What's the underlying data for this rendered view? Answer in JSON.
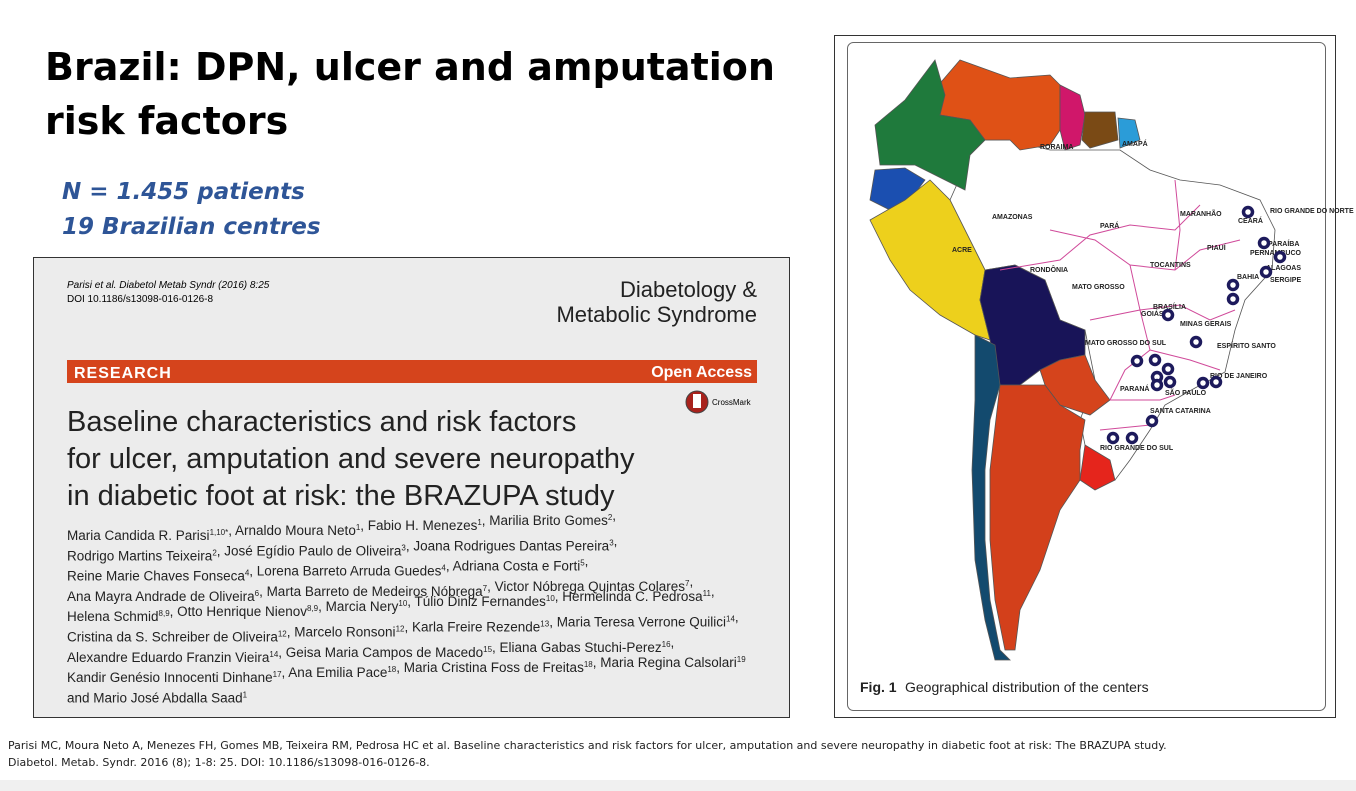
{
  "slide": {
    "title_lines": [
      "Brazil: DPN, ulcer and amputation",
      "risk factors"
    ],
    "subtitle_lines": [
      "N = 1.455 patients",
      "19 Brazilian centres"
    ]
  },
  "paper": {
    "citation_lines": [
      "Parisi et al. Diabetol Metab Syndr (2016) 8:25",
      "DOI 10.1186/s13098-016-0126-8"
    ],
    "journal_lines": [
      "Diabetology &",
      "Metabolic Syndrome"
    ],
    "section": "RESEARCH",
    "access": "Open Access",
    "crossmark": "CrossMark",
    "title_lines": [
      "Baseline characteristics and risk factors",
      "for ulcer, amputation and severe neuropathy",
      "in diabetic foot at risk: the BRAZUPA study"
    ],
    "author_lines": [
      [
        {
          "text": "Maria Candida R. Parisi",
          "sup": "1,10*"
        },
        {
          "text": ", Arnaldo Moura Neto",
          "sup": "1"
        },
        {
          "text": ", Fabio H. Menezes",
          "sup": "1"
        },
        {
          "text": ", Marilia Brito Gomes",
          "sup": "2"
        },
        {
          "text": ","
        }
      ],
      [
        {
          "text": "Rodrigo Martins Teixeira",
          "sup": "2"
        },
        {
          "text": ", José Egídio Paulo de Oliveira",
          "sup": "3"
        },
        {
          "text": ", Joana Rodrigues Dantas Pereira",
          "sup": "3"
        },
        {
          "text": ","
        }
      ],
      [
        {
          "text": "Reine Marie Chaves Fonseca",
          "sup": "4"
        },
        {
          "text": ", Lorena Barreto Arruda Guedes",
          "sup": "4"
        },
        {
          "text": ", Adriana Costa e Forti",
          "sup": "5"
        },
        {
          "text": ","
        }
      ],
      [
        {
          "text": "Ana Mayra Andrade de Oliveira",
          "sup": "6"
        },
        {
          "text": ", Marta Barreto de Medeiros Nóbrega",
          "sup": "7"
        },
        {
          "text": ", Victor Nóbrega Quintas Colares",
          "sup": "7"
        },
        {
          "text": ","
        }
      ],
      [
        {
          "text": "Helena Schmid",
          "sup": "8,9"
        },
        {
          "text": ", Otto Henrique Nienov",
          "sup": "8,9"
        },
        {
          "text": ", Marcia Nery",
          "sup": "10"
        },
        {
          "text": ", Túlio Diniz Fernandes",
          "sup": "10"
        },
        {
          "text": ", Hermelinda C. Pedrosa",
          "sup": "11"
        },
        {
          "text": ","
        }
      ],
      [
        {
          "text": "Cristina da S. Schreiber de Oliveira",
          "sup": "12"
        },
        {
          "text": ", Marcelo Ronsoni",
          "sup": "12"
        },
        {
          "text": ", Karla Freire Rezende",
          "sup": "13"
        },
        {
          "text": ", Maria Teresa Verrone Quilici",
          "sup": "14"
        },
        {
          "text": ","
        }
      ],
      [
        {
          "text": "Alexandre Eduardo Franzin Vieira",
          "sup": "14"
        },
        {
          "text": ", Geisa Maria Campos de Macedo",
          "sup": "15"
        },
        {
          "text": ", Eliana Gabas Stuchi-Perez",
          "sup": "16"
        },
        {
          "text": ","
        }
      ],
      [
        {
          "text": "Kandir Genésio Innocenti Dinhane",
          "sup": "17"
        },
        {
          "text": ", Ana Emilia Pace",
          "sup": "18"
        },
        {
          "text": ", Maria Cristina Foss de Freitas",
          "sup": "18"
        },
        {
          "text": ", Maria Regina Calsolari",
          "sup": "19"
        }
      ],
      [
        {
          "text": "and Mario José Abdalla Saad",
          "sup": "1"
        }
      ]
    ]
  },
  "figure": {
    "label": "Fig. 1",
    "caption": "Geographical distribution of the centers",
    "states": [
      "RORAIMA",
      "AMAPÁ",
      "AMAZONAS",
      "PARÁ",
      "MARANHÃO",
      "CEARÁ",
      "RIO GRANDE DO NORTE",
      "PARAÍBA",
      "PERNAMBUCO",
      "ALAGOAS",
      "SERGIPE",
      "PIAUÍ",
      "BAHIA",
      "ACRE",
      "RONDÔNIA",
      "MATO GROSSO",
      "TOCANTINS",
      "GOIÁS",
      "BRASÍLIA",
      "MINAS GERAIS",
      "ESPÍRITO SANTO",
      "MATO GROSSO DO SUL",
      "RIO DE JANEIRO",
      "SÃO PAULO",
      "PARANÁ",
      "SANTA CATARINA",
      "RIO GRANDE DO SUL"
    ]
  },
  "reference_lines": [
    "Parisi MC, Moura Neto A, Menezes FH, Gomes MB, Teixeira RM, Pedrosa HC et al. Baseline characteristics and risk factors for ulcer, amputation and severe neuropathy in diabetic foot at risk: The BRAZUPA study.",
    "Diabetol. Metab. Syndr. 2016 (8); 1-8: 25. DOI: 10.1186/s13098-016-0126-8."
  ]
}
